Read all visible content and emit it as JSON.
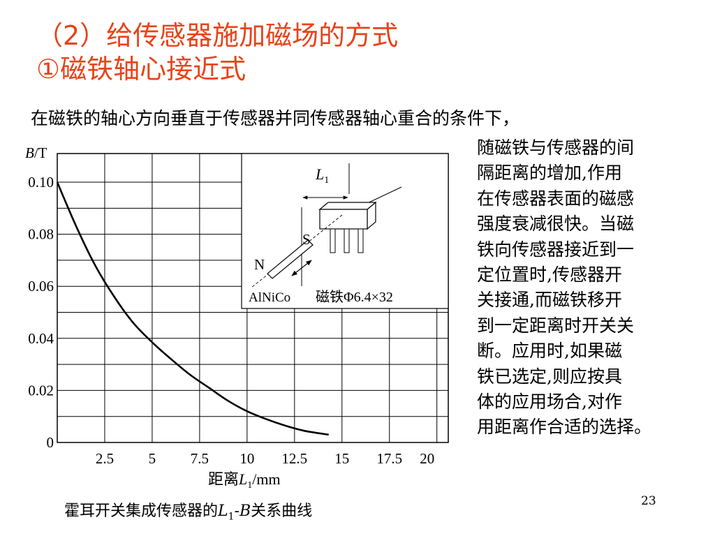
{
  "title_lines": [
    "（2）给传感器施加磁场的方式",
    "①磁铁轴心接近式"
  ],
  "intro": "在磁铁的轴心方向垂直于传感器并同传感器轴心重合的条件下，",
  "side_lines": [
    "随磁铁与传感器的间",
    "隔距离的增加,作用",
    "在传感器表面的磁感",
    "强度衰减很快。当磁",
    "铁向传感器接近到一",
    "定位置时,传感器开",
    "关接通,而磁铁移开",
    "到一定距离时开关关",
    "断。应用时,如果磁",
    "铁已选定,则应按具",
    "体的应用场合,对作",
    "用距离作合适的选择。"
  ],
  "caption": {
    "prefix": "霍耳开关集成传感器的",
    "l": "L",
    "sub": "1",
    "dash": "-",
    "b": "B",
    "suffix": "关系曲线"
  },
  "page_number": "23",
  "chart_data": {
    "type": "line",
    "ylabel": {
      "var": "B",
      "unit": "/T"
    },
    "xlabel": {
      "prefix": "距离",
      "var": "L",
      "sub": "1",
      "unit": "/mm"
    },
    "x_ticks": [
      "2.5",
      "5",
      "7.5",
      "10",
      "12.5",
      "15",
      "17.5",
      "20"
    ],
    "y_ticks": [
      "0",
      "0.02",
      "0.04",
      "0.06",
      "0.08",
      "0.10"
    ],
    "xlim": [
      0,
      20.6
    ],
    "ylim": [
      0,
      0.111
    ],
    "grid": true,
    "series": [
      {
        "x": [
          0,
          1,
          2,
          3,
          4,
          5,
          6,
          7,
          8,
          9,
          10,
          11,
          12,
          13,
          14.3
        ],
        "y": [
          0.1,
          0.083,
          0.068,
          0.056,
          0.046,
          0.0385,
          0.032,
          0.026,
          0.021,
          0.016,
          0.012,
          0.009,
          0.0065,
          0.0045,
          0.003
        ]
      }
    ],
    "inset": {
      "l_label": {
        "var": "L",
        "sub": "1"
      },
      "pole_s": "S",
      "pole_n": "N",
      "material": "AlNiCo",
      "magnet_spec": "磁铁Φ6.4×32"
    }
  }
}
